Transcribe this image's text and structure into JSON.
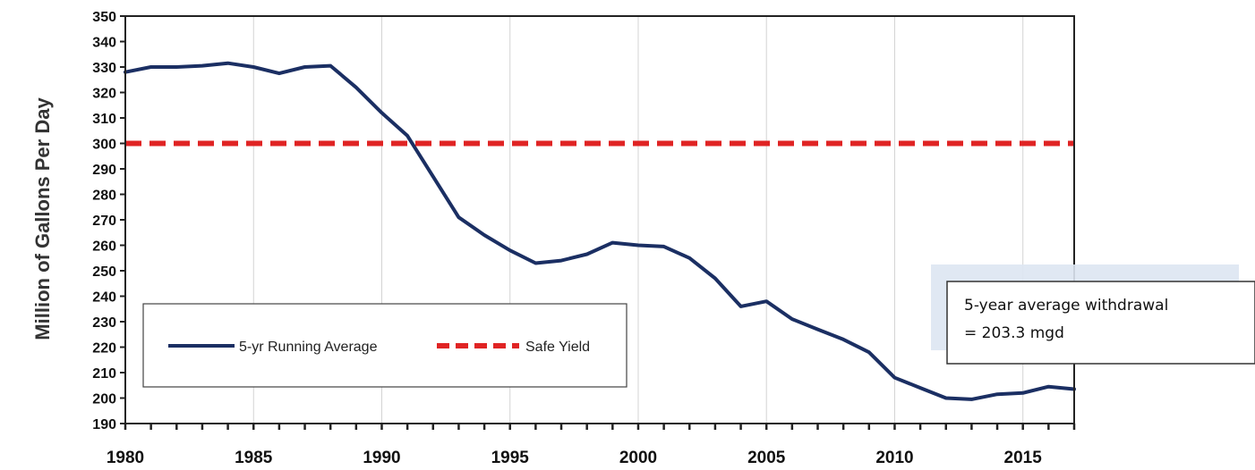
{
  "chart_data": {
    "type": "line",
    "ylabel": "Million of Gallons Per Day",
    "xlim": [
      1980,
      2017
    ],
    "ylim": [
      190,
      350
    ],
    "x_ticks": [
      "1980",
      "1985",
      "1990",
      "1995",
      "2000",
      "2005",
      "2010",
      "2015"
    ],
    "y_ticks": [
      "190",
      "200",
      "210",
      "220",
      "230",
      "240",
      "250",
      "260",
      "270",
      "280",
      "290",
      "300",
      "310",
      "320",
      "330",
      "340",
      "350"
    ],
    "grid": "vertical",
    "legend_position": "lower-left",
    "series": [
      {
        "name": "5-yr Running Average",
        "color": "#1b2f63",
        "style": "solid",
        "x": [
          1980,
          1981,
          1982,
          1983,
          1984,
          1985,
          1986,
          1987,
          1988,
          1989,
          1990,
          1991,
          1992,
          1993,
          1994,
          1995,
          1996,
          1997,
          1998,
          1999,
          2000,
          2001,
          2002,
          2003,
          2004,
          2005,
          2006,
          2007,
          2008,
          2009,
          2010,
          2011,
          2012,
          2013,
          2014,
          2015,
          2016,
          2017
        ],
        "values": [
          328,
          330,
          330,
          330.5,
          331.5,
          330,
          327.5,
          330,
          330.5,
          322,
          312,
          303,
          287,
          271,
          264,
          258,
          253,
          254,
          256.5,
          261,
          260,
          259.5,
          255,
          247,
          236,
          238,
          231,
          227,
          223,
          218,
          208,
          204,
          200,
          199.5,
          201.5,
          202,
          204.5,
          203.5
        ]
      },
      {
        "name": "Safe Yield",
        "color": "#e02424",
        "style": "dashed",
        "x": [
          1980,
          2017
        ],
        "values": [
          300,
          300
        ]
      }
    ],
    "annotation": {
      "line1": "5-year average withdrawal",
      "line2": "= 203.3 mgd"
    }
  }
}
